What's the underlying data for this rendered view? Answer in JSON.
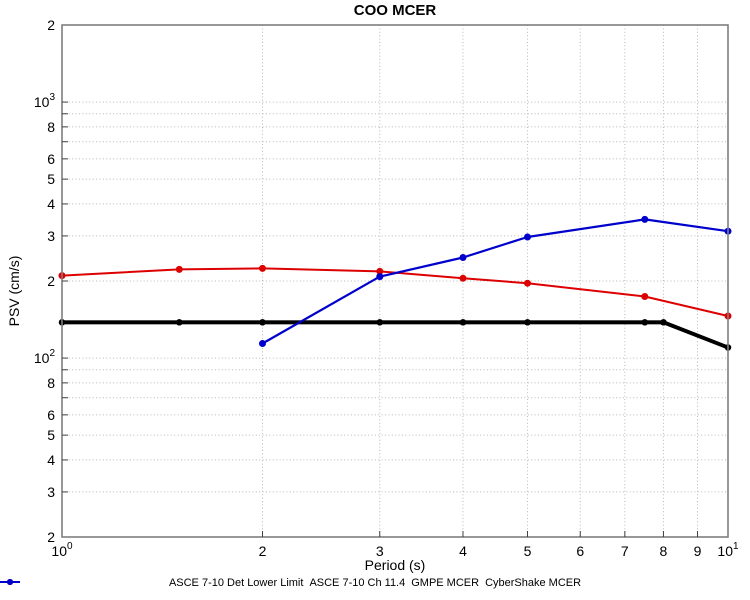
{
  "chart_data": {
    "type": "line",
    "title": "COO MCER",
    "xlabel": "Period (s)",
    "ylabel": "PSV (cm/s)",
    "xscale": "log",
    "yscale": "log",
    "xlim": [
      1,
      10
    ],
    "ylim": [
      20,
      2000
    ],
    "grid": "dotted",
    "legend_position": "bottom",
    "x_ticks": [
      {
        "value": 1,
        "label": "10",
        "exp": "0"
      },
      {
        "value": 2,
        "label": "2",
        "exp": ""
      },
      {
        "value": 3,
        "label": "3",
        "exp": ""
      },
      {
        "value": 4,
        "label": "4",
        "exp": ""
      },
      {
        "value": 5,
        "label": "5",
        "exp": ""
      },
      {
        "value": 6,
        "label": "6",
        "exp": ""
      },
      {
        "value": 7,
        "label": "7",
        "exp": ""
      },
      {
        "value": 8,
        "label": "8",
        "exp": ""
      },
      {
        "value": 9,
        "label": "9",
        "exp": ""
      },
      {
        "value": 10,
        "label": "10",
        "exp": "1"
      }
    ],
    "y_ticks": [
      {
        "value": 2000,
        "label": "2",
        "exp": ""
      },
      {
        "value": 1000,
        "label": "10",
        "exp": "3"
      },
      {
        "value": 800,
        "label": "8",
        "exp": ""
      },
      {
        "value": 600,
        "label": "6",
        "exp": ""
      },
      {
        "value": 500,
        "label": "5",
        "exp": ""
      },
      {
        "value": 400,
        "label": "4",
        "exp": ""
      },
      {
        "value": 300,
        "label": "3",
        "exp": ""
      },
      {
        "value": 200,
        "label": "2",
        "exp": ""
      },
      {
        "value": 100,
        "label": "10",
        "exp": "2"
      },
      {
        "value": 80,
        "label": "8",
        "exp": ""
      },
      {
        "value": 60,
        "label": "6",
        "exp": ""
      },
      {
        "value": 50,
        "label": "5",
        "exp": ""
      },
      {
        "value": 40,
        "label": "4",
        "exp": ""
      },
      {
        "value": 30,
        "label": "3",
        "exp": ""
      },
      {
        "value": 20,
        "label": "2",
        "exp": ""
      }
    ],
    "grid_x": [
      2,
      3,
      4,
      5,
      6,
      7,
      8,
      9
    ],
    "grid_y": [
      30,
      40,
      50,
      60,
      70,
      80,
      90,
      100,
      200,
      300,
      400,
      500,
      600,
      700,
      800,
      900,
      1000
    ],
    "series": [
      {
        "name": "ASCE 7-10 Det Lower Limit",
        "color": "#4d4d4d",
        "line_width": 3.8,
        "marker_size": 3.2,
        "x": [
          1,
          1.5,
          2,
          3,
          4,
          5,
          7.5,
          8,
          10
        ],
        "y": [
          138,
          138,
          138,
          138,
          138,
          138,
          138,
          138,
          110
        ]
      },
      {
        "name": "ASCE 7-10 Ch 11.4",
        "color": "#000000",
        "line_width": 3.8,
        "marker_size": 3.2,
        "x": [
          1,
          1.5,
          2,
          3,
          4,
          5,
          7.5,
          8,
          10
        ],
        "y": [
          138,
          138,
          138,
          138,
          138,
          138,
          138,
          138,
          110
        ]
      },
      {
        "name": "GMPE MCER",
        "color": "#dd0000",
        "line_width": 2,
        "marker_size": 3.5,
        "x": [
          1,
          1.5,
          2,
          3,
          4,
          5,
          7.5,
          10
        ],
        "y": [
          210,
          222,
          224,
          218,
          205,
          196,
          174,
          146
        ]
      },
      {
        "name": "CyberShake MCER",
        "color": "#0000cc",
        "line_width": 2.2,
        "marker_size": 3.5,
        "x": [
          2,
          3,
          4,
          5,
          7.5,
          10
        ],
        "y": [
          114,
          208,
          247,
          297,
          348,
          313
        ]
      }
    ]
  }
}
